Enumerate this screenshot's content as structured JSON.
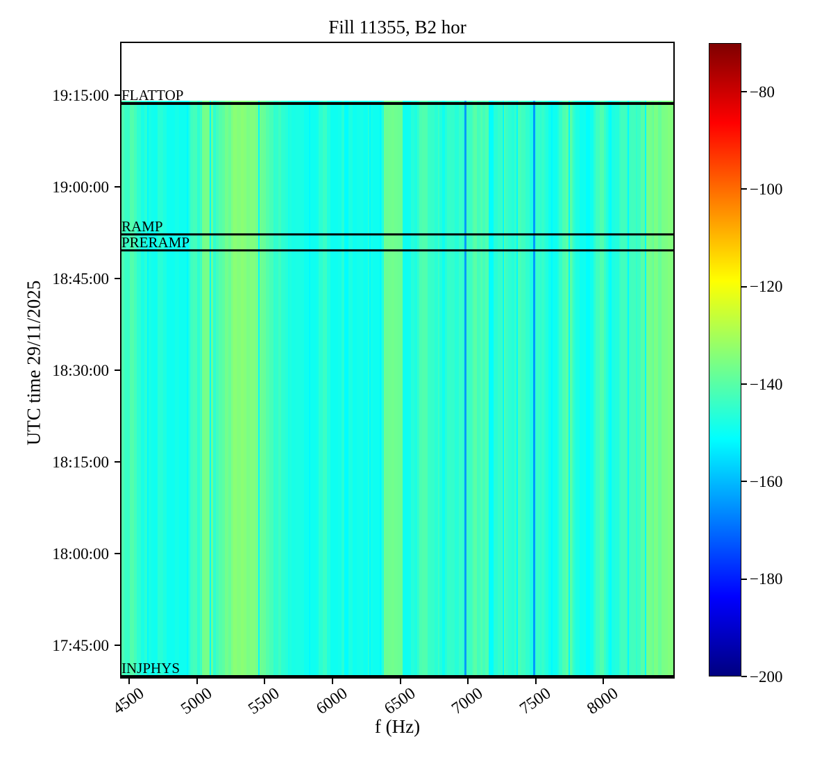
{
  "title": "Fill 11355, B2 hor",
  "axes": {
    "x": {
      "label": "f (Hz)",
      "ticks": [
        "4500",
        "5000",
        "5500",
        "6000",
        "6500",
        "7000",
        "7500",
        "8000"
      ]
    },
    "y": {
      "label": "UTC time 29/11/2025",
      "ticks": [
        "19:15:00",
        "19:00:00",
        "18:45:00",
        "18:30:00",
        "18:15:00",
        "18:00:00",
        "17:45:00"
      ]
    }
  },
  "colorbar": {
    "colormap": "jet",
    "vmin": -200,
    "vmax": -70,
    "ticks": [
      "−80",
      "−100",
      "−120",
      "−140",
      "−160",
      "−180",
      "−200"
    ]
  },
  "beam_modes": [
    {
      "label": "FLATTOP",
      "time": "19:13:50",
      "line_thickness": 4
    },
    {
      "label": "RAMP",
      "time": "18:52:20",
      "line_thickness": 3
    },
    {
      "label": "PRERAMP",
      "time": "18:49:47",
      "line_thickness": 3
    },
    {
      "label": "INJPHYS",
      "time": "17:40:00",
      "line_thickness": 3
    }
  ],
  "chart_data": {
    "type": "heatmap",
    "subtype": "spectrogram",
    "title": "Fill 11355, B2 hor",
    "xlabel": "f (Hz)",
    "ylabel": "UTC time 29/11/2025",
    "x_range_hz": [
      4434,
      8525
    ],
    "x_tick_values_hz": [
      4500,
      5000,
      5500,
      6000,
      6500,
      7000,
      7500,
      8000
    ],
    "time_axis_top": "19:23:45",
    "time_axis_bottom": "17:39:33",
    "time_tick_values": [
      "19:15:00",
      "19:00:00",
      "18:45:00",
      "18:30:00",
      "18:15:00",
      "18:00:00",
      "17:45:00"
    ],
    "data_time_span": [
      "17:39:33",
      "19:14:15"
    ],
    "value_range_db": [
      -200,
      -70
    ],
    "colorbar_tick_values_db": [
      -80,
      -100,
      -120,
      -140,
      -160,
      -180,
      -200
    ],
    "noise_floor_db": {
      "mean": -141,
      "min": -149.5,
      "max": -133.5
    },
    "green_bands_hz": [
      [
        5040,
        5120
      ],
      [
        6380,
        6520
      ]
    ],
    "green_band_value_db": -134.5,
    "cyan_lines_hz": [
      4640,
      4930,
      5100,
      5458,
      5832,
      6277,
      6354,
      7158,
      7260,
      7363,
      7619,
      7747,
      8182,
      8310
    ],
    "cyan_line_value_db": -151.8,
    "blue_lines_hz": [
      6980,
      7486
    ],
    "blue_line_value_db": -164,
    "stripe_seed": 20251129,
    "grid": false,
    "legend": false
  }
}
